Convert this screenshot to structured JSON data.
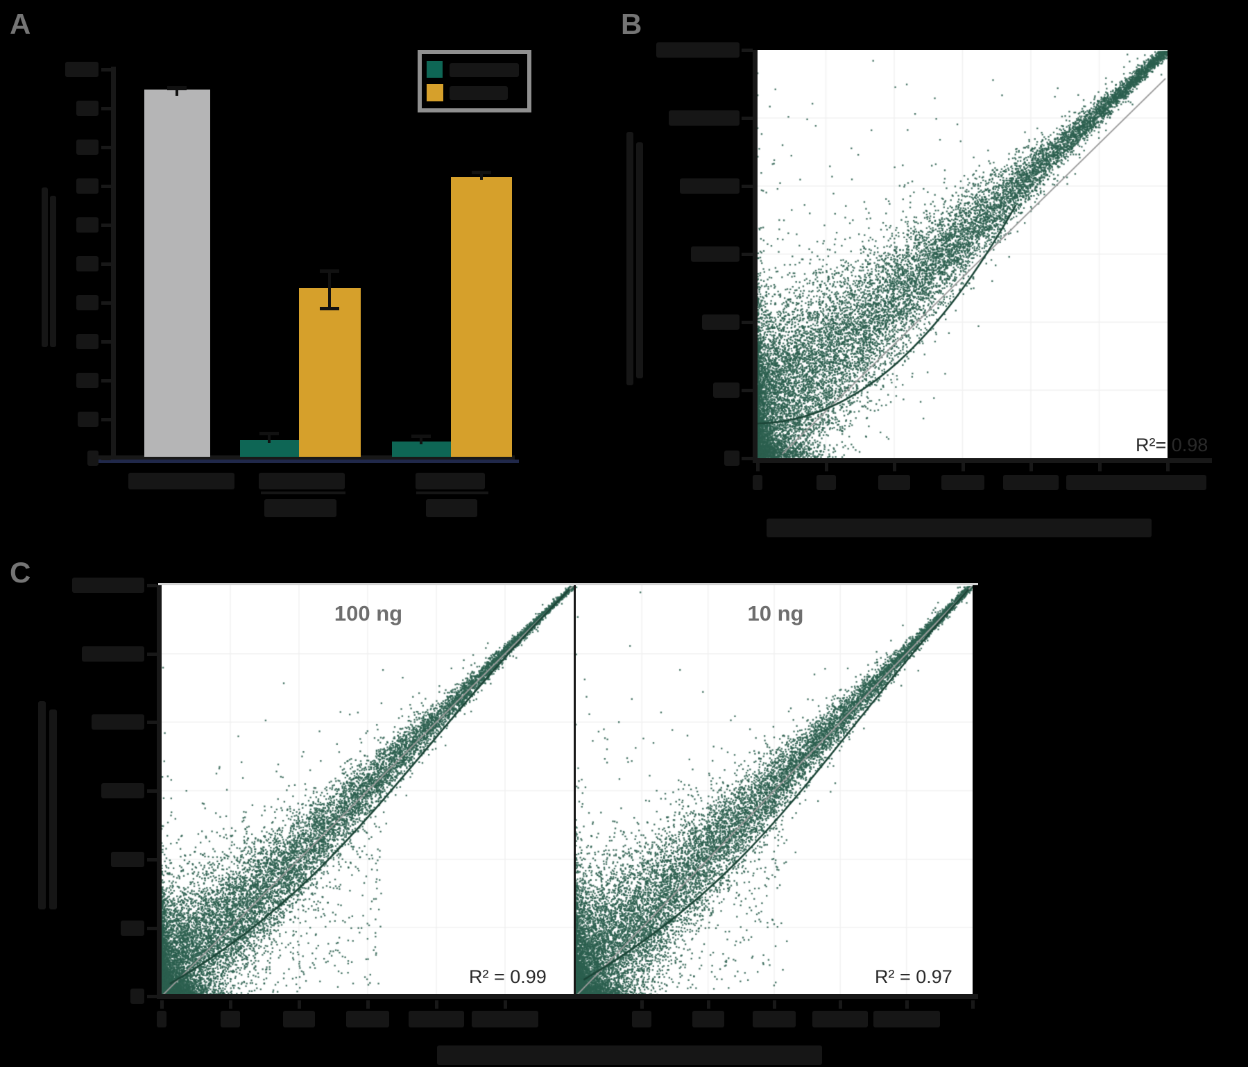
{
  "figure": {
    "background": "#000000",
    "note": "Scientific three-panel figure on black background; most axis/tick/title text is near-black on black (illegible blobs). Only items listed as visible_text are legible."
  },
  "colors": {
    "teal": "#0E6655",
    "gold": "#D6A02B",
    "gray_bar": "#B5B5B6",
    "scatter_point": "#2B5F4F",
    "loess_line": "#1B4537",
    "identity_line": "#9A9A9A",
    "navy_baseline": "#20284A",
    "axis_dark": "#181818",
    "illegible_text": "#161616",
    "panel_label_gray": "#757575",
    "facet_title_gray": "#6E6E6E",
    "r2_text": "#2A2A2A",
    "legend_border": "#8F8F8F",
    "grid_on_white": "#F1F1F1",
    "plot_top_border": "#D4D4D4"
  },
  "panels": {
    "a": {
      "label": "A",
      "legend": {
        "entries": [
          {
            "swatch_color": "#0E6655",
            "label_illegible": true
          },
          {
            "swatch_color": "#D6A02B",
            "label_illegible": true
          }
        ]
      }
    },
    "b": {
      "label": "B",
      "r2": "R²= 0.98"
    },
    "c": {
      "label": "C",
      "facet1_title": "100 ng",
      "facet2_title": "10 ng",
      "facet1_r2": "R² = 0.99",
      "facet2_r2": "R² = 0.97"
    }
  },
  "chart_data": [
    {
      "type": "bar",
      "panel": "A",
      "title": "",
      "ylabel_illegible": true,
      "xlabel": "",
      "ylim": [
        0,
        100
      ],
      "y_tick_step": 10,
      "y_tick_labels_illegible": true,
      "category_labels_illegible": true,
      "group_sublabels_illegible": true,
      "legend_labels_illegible": true,
      "groups": [
        {
          "bars": [
            {
              "series": "gray-control",
              "color": "#B5B5B6",
              "value": 96,
              "error": 1
            }
          ]
        },
        {
          "bars": [
            {
              "series": "teal",
              "color": "#0E6655",
              "value": 4.5,
              "error": 1.5
            },
            {
              "series": "gold",
              "color": "#D6A02B",
              "value": 44,
              "error": 5
            }
          ]
        },
        {
          "bars": [
            {
              "series": "teal",
              "color": "#0E6655",
              "value": 4,
              "error": 1
            },
            {
              "series": "gold",
              "color": "#D6A02B",
              "value": 73,
              "error": 1.5
            }
          ]
        }
      ],
      "values_estimated_from_pixels": true
    },
    {
      "type": "scatter",
      "panel": "B",
      "annotation": "R²= 0.98",
      "axes": {
        "x": {
          "scale": "log10",
          "decades": 6,
          "tick_labels_illegible": true,
          "title_illegible": true
        },
        "y": {
          "scale": "log10",
          "decades": 6,
          "tick_labels_illegible": true,
          "title_illegible": true
        }
      },
      "description": "Dense dark-green point cloud rising along gray identity line with dark loess curve; thousands of points (individual values not enumerable).",
      "grid": true,
      "legend": "none"
    },
    {
      "type": "scatter",
      "panel": "C",
      "facets": [
        {
          "title": "100 ng",
          "annotation": "R² = 0.99"
        },
        {
          "title": "10 ng",
          "annotation": "R² = 0.97"
        }
      ],
      "axes": {
        "x": {
          "scale": "log10",
          "decades": 6,
          "tick_labels_illegible": true,
          "title_illegible": true
        },
        "y": {
          "scale": "log10",
          "decades": 6,
          "tick_labels_illegible": true,
          "title_illegible": true
        }
      },
      "description": "Two side-by-side facets sharing the y axis; tight diagonal clouds with gray identity lines and dark loess curves.",
      "grid": true,
      "legend": "none"
    }
  ],
  "scatter_render": {
    "point_size": 2.4,
    "point_alpha": 0.85,
    "B": {
      "seed": 7,
      "n": 14000,
      "skew": 2.0,
      "sd0": 0.8,
      "sdMin": 0.05,
      "lift": 0.5,
      "tailN": 0,
      "diagN": 55,
      "diagLo": 2.4,
      "identity": [
        [
          0.06,
          0.01
        ],
        [
          0.995,
          0.93
        ]
      ],
      "loess": [
        [
          0.0,
          0.085
        ],
        [
          0.25,
          0.09
        ],
        [
          0.45,
          0.3
        ],
        [
          0.63,
          0.62
        ]
      ]
    },
    "C1": {
      "seed": 11,
      "n": 14000,
      "skew": 2.3,
      "sd0": 0.62,
      "sdMin": 0.02,
      "lift": 0.1,
      "tailN": 520,
      "diagN": 90,
      "diagLo": 3.0,
      "identity": [
        [
          0.004,
          0.004
        ],
        [
          0.998,
          0.998
        ]
      ],
      "loess": [
        [
          0.02,
          0.03
        ],
        [
          0.45,
          0.28
        ],
        [
          0.6,
          0.6
        ],
        [
          0.99,
          0.99
        ]
      ]
    },
    "C2": {
      "seed": 13,
      "n": 14000,
      "skew": 2.15,
      "sd0": 0.7,
      "sdMin": 0.03,
      "lift": 0.14,
      "tailN": 400,
      "diagN": 75,
      "diagLo": 3.0,
      "identity": [
        [
          0.004,
          0.004
        ],
        [
          0.998,
          0.998
        ]
      ],
      "loess": [
        [
          0.02,
          0.04
        ],
        [
          0.48,
          0.3
        ],
        [
          0.62,
          0.6
        ],
        [
          0.99,
          0.99
        ]
      ]
    }
  }
}
